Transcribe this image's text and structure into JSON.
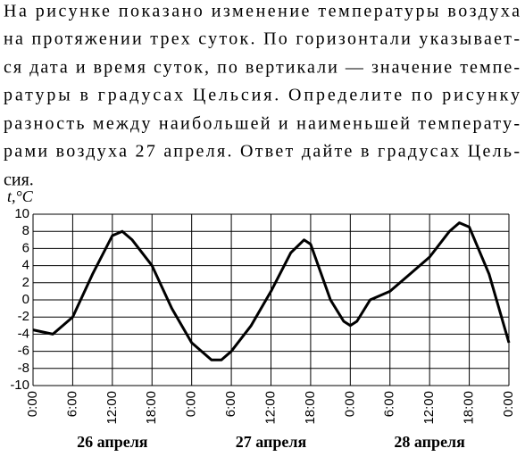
{
  "problem_text": [
    "На рисунке показано изменение температуры воздуха",
    "на протяжении трех суток. По горизонтали указывает-",
    "ся дата и время суток, по вертикали — значение темпе-",
    "ратуры в градусах Цельсия. Определите по рисунку",
    "разность между наибольшей и наименьшей температу-",
    "рами воздуха 27 апреля. Ответ дайте в градусах Цель-",
    "сия."
  ],
  "chart_data": {
    "type": "line",
    "y_label": "t,°C",
    "x": [
      0,
      3,
      6,
      9,
      12,
      13.5,
      15,
      18,
      21,
      24,
      27,
      28.5,
      30,
      33,
      36,
      39,
      41,
      42,
      45,
      47,
      48,
      49,
      51,
      54,
      57,
      60,
      63,
      64.5,
      66,
      69,
      72
    ],
    "values": [
      -3.5,
      -4,
      -2,
      3,
      7.5,
      8,
      7,
      4,
      -1,
      -5,
      -7,
      -7,
      -6,
      -3,
      1,
      5.5,
      7,
      6.5,
      0,
      -2.5,
      -3,
      -2.5,
      0,
      1,
      3,
      5,
      8,
      9,
      8.5,
      3,
      -5
    ],
    "color": "#000000",
    "xlim": [
      0,
      72
    ],
    "xticks": [
      {
        "value": 0,
        "label": "0:00"
      },
      {
        "value": 6,
        "label": "6:00"
      },
      {
        "value": 12,
        "label": "12:00"
      },
      {
        "value": 18,
        "label": "18:00"
      },
      {
        "value": 24,
        "label": "0:00"
      },
      {
        "value": 30,
        "label": "6:00"
      },
      {
        "value": 36,
        "label": "12:00"
      },
      {
        "value": 42,
        "label": "18:00"
      },
      {
        "value": 48,
        "label": "0:00"
      },
      {
        "value": 54,
        "label": "6:00"
      },
      {
        "value": 60,
        "label": "12:00"
      },
      {
        "value": 66,
        "label": "18:00"
      },
      {
        "value": 72,
        "label": "0:00"
      }
    ],
    "ylim": [
      -10,
      10
    ],
    "yticks": [
      -10,
      -8,
      -6,
      -4,
      -2,
      0,
      2,
      4,
      6,
      8,
      10
    ],
    "day_labels": [
      "26 апреля",
      "27 апреля",
      "28 апреля"
    ],
    "grid": true
  }
}
